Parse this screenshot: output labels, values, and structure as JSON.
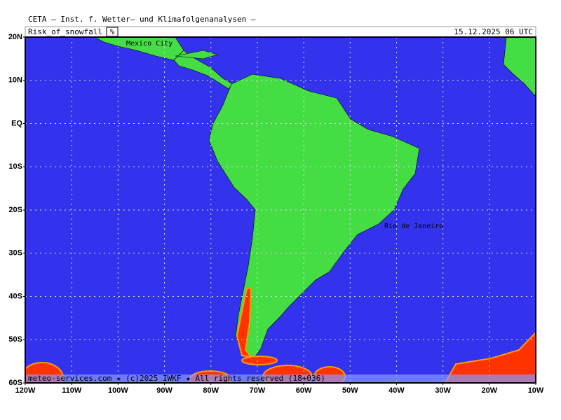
{
  "header": {
    "title": "CETA – Inst. f. Wetter– und Klimafolgenanalysen –",
    "product": "Risk_of_snowfall",
    "unit": "%",
    "datetime": "15.12.2025 06 UTC"
  },
  "map": {
    "lat_labels": [
      "20N",
      "10N",
      "EQ",
      "10S",
      "20S",
      "30S",
      "40S",
      "50S",
      "60S"
    ],
    "lon_labels": [
      "120W",
      "110W",
      "100W",
      "90W",
      "80W",
      "70W",
      "60W",
      "50W",
      "40W",
      "30W",
      "20W",
      "10W"
    ],
    "places": [
      {
        "name": "Mexico City",
        "x": 180,
        "y": 62
      },
      {
        "name": "Rio de Janeiro",
        "x": 548,
        "y": 323
      }
    ]
  },
  "footer": {
    "credit": "meteo-services.com ★ (c)2025 IWKF ★ All rights reserved (18+036)"
  }
}
